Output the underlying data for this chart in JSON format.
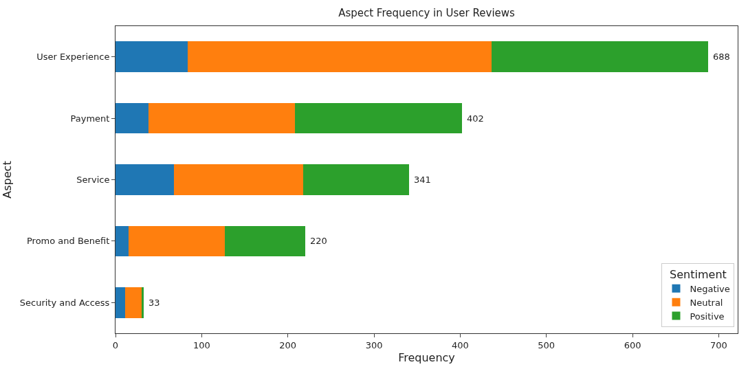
{
  "chart_data": {
    "type": "bar",
    "orientation": "horizontal",
    "stacked": true,
    "title": "Aspect Frequency in User Reviews",
    "xlabel": "Frequency",
    "ylabel": "Aspect",
    "legend_title": "Sentiment",
    "categories": [
      "User Experience",
      "Payment",
      "Service",
      "Promo and Benefit",
      "Security and Access"
    ],
    "series": [
      {
        "name": "Negative",
        "color": "#1f77b4",
        "values": [
          84,
          38,
          68,
          15,
          11
        ]
      },
      {
        "name": "Neutral",
        "color": "#ff7f0e",
        "values": [
          352,
          170,
          150,
          112,
          19
        ]
      },
      {
        "name": "Positive",
        "color": "#2ca02c",
        "values": [
          252,
          194,
          123,
          93,
          3
        ]
      }
    ],
    "totals": [
      "688",
      "402",
      "341",
      "220",
      "33"
    ],
    "xlim": [
      0,
      722
    ],
    "xticks": [
      0,
      100,
      200,
      300,
      400,
      500,
      600,
      700
    ],
    "legend": "bottom right"
  }
}
